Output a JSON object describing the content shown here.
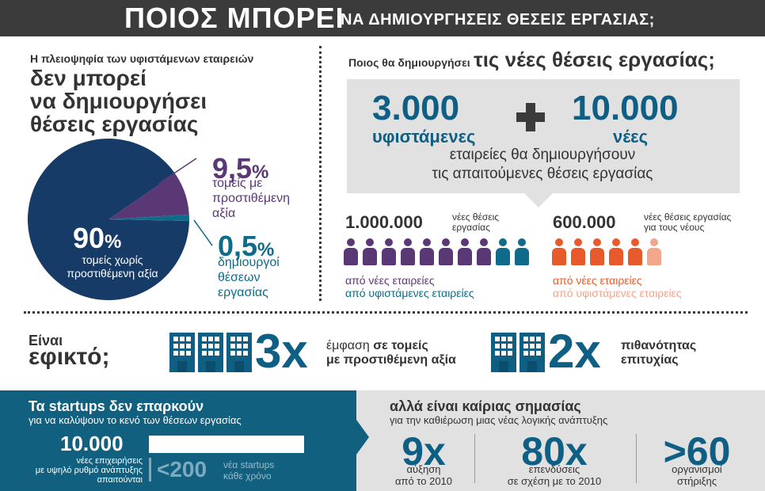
{
  "header": {
    "title_big": "ΠΟΙΟΣ ΜΠΟΡΕΙ",
    "title_small": "ΝΑ ΔΗΜΙΟΥΡΓΗΣΕΙΣ ΘΕΣΕΙΣ ΕΡΓΑΣΙΑΣ;"
  },
  "left": {
    "subtitle": "Η πλειοψηφία των υφιστάμενων εταιρειών",
    "title_line1": "δεν μπορεί",
    "title_line2": "να δημιουργήσει",
    "title_line3": "θέσεις εργασίας",
    "slices": [
      {
        "value": "90",
        "symbol": "%",
        "label_line1": "τομείς χωρίς",
        "label_line2": "προστιθέμενη αξία",
        "color": "#163b66"
      },
      {
        "value": "9,5",
        "symbol": "%",
        "label_line1": "τομείς με",
        "label_line2": "προστιθέμενη",
        "label_line3": "αξία",
        "color": "#5a3775"
      },
      {
        "value": "0,5",
        "symbol": "%",
        "label_line1": "δημιουργοί",
        "label_line2": "θέσεων",
        "label_line3": "εργασίας",
        "color": "#0e6b8a"
      }
    ]
  },
  "right": {
    "question_small": "Ποιος θα δημιουργήσει",
    "question_large": "τις νέες θέσεις εργασίας;",
    "existing_number": "3.000",
    "existing_label": "υφιστάμενες",
    "plus": "+",
    "new_number": "10.000",
    "new_label": "νέες",
    "sentence_line1": "εταιρείες θα δημιουργήσουν",
    "sentence_line2": "τις απαιτούμενες θέσεις εργασίας",
    "jobs": {
      "number": "1.000.000",
      "label_line1": "νέες θέσεις",
      "label_line2": "εργασίας",
      "people_new": 8,
      "people_existing": 2,
      "legend_new": "από νέες εταιρείες",
      "legend_existing": "από υφιστάμενες εταιρείες",
      "color_new": "#5a3775",
      "color_existing": "#0e6b8a"
    },
    "youth": {
      "number": "600.000",
      "label_line1": "νέες θέσεις εργασίας",
      "label_line2": "για τους νέους",
      "people_new": 5,
      "people_existing": 1,
      "legend_new": "από νέες εταιρείες",
      "legend_existing": "από υφιστάμενες εταιρείες",
      "color_new": "#e85a2c",
      "color_existing": "#f2a68c"
    }
  },
  "feasible": {
    "line1": "Είναι",
    "line2": "εφικτό;",
    "stat1": {
      "multiplier": "3x",
      "text_plain": "έμφαση",
      "text_bold1": "σε τομείς",
      "text_bold2": "με προστιθέμενη αξία"
    },
    "stat2": {
      "multiplier": "2x",
      "text_line1": "πιθανότητας",
      "text_line2": "επιτυχίας"
    }
  },
  "bottom_left": {
    "title": "Τα startups δεν επαρκούν",
    "subtitle": "για να καλύψουν το κενό των θέσεων εργασίας",
    "needed_number": "10.000",
    "needed_caption_line1": "νέες επιχειρήσεις",
    "needed_caption_line2": "με υψηλό ρυθμό ανάπτυξης",
    "needed_caption_line3": "απαιτούνται",
    "startups_number": "<200",
    "startups_caption_line1": "νέα startups",
    "startups_caption_line2": "κάθε χρόνο"
  },
  "bottom_right": {
    "title": "αλλά είναι καίριας σημασίας",
    "subtitle": "για την καθιέρωση μιας νέας λογικής ανάπτυξης",
    "stats": [
      {
        "value": "9x",
        "caption_line1": "αύξηση",
        "caption_line2": "από το 2010"
      },
      {
        "value": "80x",
        "caption_line1": "επενδύσεις",
        "caption_line2": "σε σχέση με το 2010"
      },
      {
        "value": ">60",
        "caption_line1": "οργανισμοί",
        "caption_line2": "στήριξης"
      }
    ]
  }
}
